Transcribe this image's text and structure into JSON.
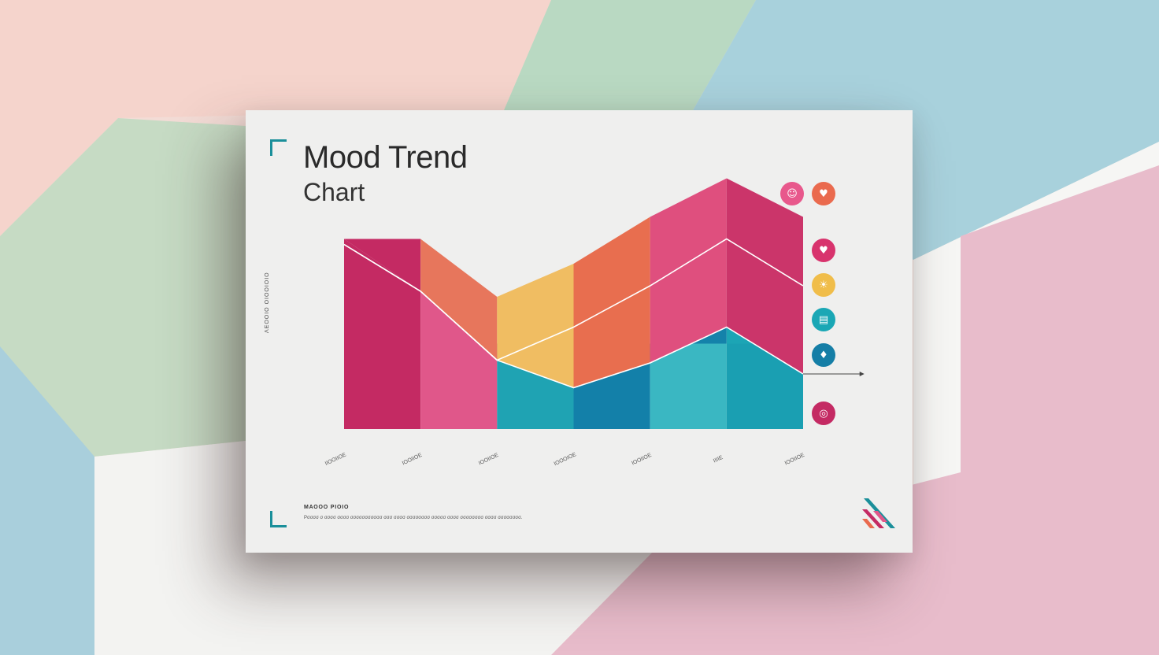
{
  "background": {
    "colors": [
      "#f3d2cc",
      "#bfdcc8",
      "#a9d2de",
      "#e9b8cc",
      "#f7f7f6"
    ]
  },
  "card": {
    "accent_color": "#1a8f9a"
  },
  "chart_data": {
    "type": "area",
    "title": "Mood Trend",
    "subtitle": "Chart",
    "ylabel": "ΛΕΟΟΙΟ ΟΙΟΟΙΟΙΟ",
    "xlabel": "",
    "categories": [
      "ΙΙΟΟΙΙΟΕ",
      "ΙΟΟΙΙΟΕ",
      "ΙΟΟΙΙΟΕ",
      "ΙΟΟΟΙΟΕ",
      "ΙΟΟΙΙΟΕ",
      "ΙΙΙΙΕ",
      "ΙΟΟΙΙΟΕ"
    ],
    "x_positions": [
      0,
      1,
      2,
      3,
      4,
      5,
      6
    ],
    "ylim": [
      0,
      100
    ],
    "grid": false,
    "legend": "right",
    "series": [
      {
        "values": [
          31,
          31,
          31,
          31,
          31,
          31,
          31
        ],
        "colors": [
          "#c42a63",
          "#e0578a",
          "#1fa3b3",
          "#1380a9",
          "#3ab7c2",
          "#1a9fb2"
        ]
      },
      {
        "values": [
          69,
          50,
          25,
          15,
          24,
          37,
          20
        ],
        "colors": [
          "#c42a63",
          "#e0578a",
          "#18a39d",
          "#3cc0c6",
          "#1482aa",
          "#1ca5b5"
        ]
      },
      {
        "values": [
          69,
          69,
          48,
          60,
          77,
          91,
          77
        ],
        "colors": [
          "#c42a63",
          "#e7765c",
          "#f0bd62",
          "#e86e4f",
          "#df4f7e",
          "#cb356a"
        ]
      }
    ],
    "lines": [
      {
        "name": "upper",
        "values": [
          67,
          50,
          25,
          37,
          52,
          69,
          52
        ],
        "color": "#ffffff"
      },
      {
        "name": "lower",
        "values": [
          67,
          50,
          25,
          15,
          24,
          37,
          20
        ],
        "color": "#ffffff"
      }
    ],
    "arrow": {
      "from_x": 6.0,
      "to_x": 6.8,
      "y": 20,
      "color": "#444444"
    }
  },
  "legend_icons": [
    {
      "name": "face-icon",
      "glyph": "☺",
      "color": "#e8588c"
    },
    {
      "name": "heart-icon",
      "glyph": "♥",
      "color": "#ea6a4e"
    },
    {
      "name": "heart-icon-2",
      "glyph": "♥",
      "color": "#d8336d"
    },
    {
      "name": "sun-icon",
      "glyph": "☀",
      "color": "#f0bd4a"
    },
    {
      "name": "chart-icon",
      "glyph": "▤",
      "color": "#1aa7b5"
    },
    {
      "name": "drop-icon",
      "glyph": "♦",
      "color": "#157ea6"
    },
    {
      "name": "brain-icon",
      "glyph": "◎",
      "color": "#c42a63"
    }
  ],
  "footer": {
    "title": "ΜΑΟΟΟ ΡΙΟΙΟ",
    "text": "Ρσσσσ σ σσσσ σσσσ σσσσσσσσσσσ σσσ σσσσ σσσσσσσσ σσσσσ σσσσ σσσσσσσσ σσσσ σσσσσσσσ."
  }
}
